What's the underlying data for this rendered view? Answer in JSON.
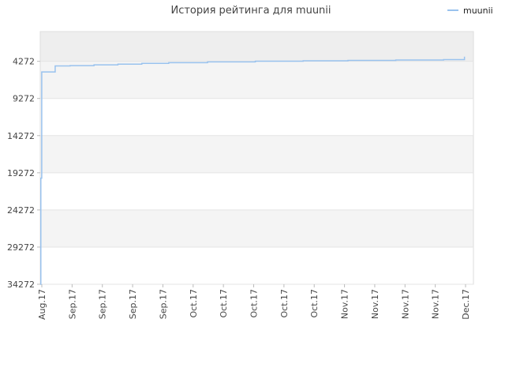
{
  "chart_data": {
    "type": "line",
    "title": "История рейтинга для muunii",
    "xlabel": "",
    "ylabel": "",
    "y_inverted": true,
    "ylim": [
      34272,
      272
    ],
    "y_ticks": [
      4272,
      9272,
      14272,
      19272,
      24272,
      29272,
      34272
    ],
    "x_ticks": [
      "Aug.17",
      "Sep.17",
      "Sep.17",
      "Sep.17",
      "Sep.17",
      "Oct.17",
      "Oct.17",
      "Oct.17",
      "Oct.17",
      "Oct.17",
      "Nov.17",
      "Nov.17",
      "Nov.17",
      "Nov.17",
      "Dec.17"
    ],
    "x_range": [
      0,
      14.5
    ],
    "grid": true,
    "legend_position": "top-right",
    "series": [
      {
        "name": "muunii",
        "color": "#99c2ee",
        "step": true,
        "x": [
          0,
          0.02,
          0.05,
          0.08,
          0.5,
          1,
          1.8,
          2.6,
          3.4,
          4.3,
          5.6,
          7.2,
          8.8,
          10.3,
          11.9,
          13.5,
          14.2,
          14.2
        ],
        "y": [
          34272,
          20000,
          5700,
          5700,
          4900,
          4850,
          4750,
          4650,
          4550,
          4450,
          4350,
          4250,
          4200,
          4150,
          4100,
          4050,
          4000,
          3650
        ]
      }
    ]
  }
}
